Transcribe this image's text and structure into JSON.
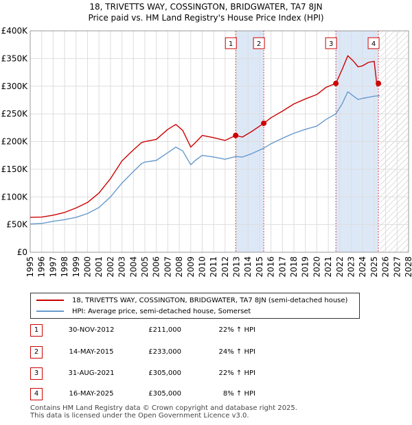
{
  "title_line1": "18, TRIVETTS WAY, COSSINGTON, BRIDGWATER, TA7 8JN",
  "title_line2": "Price paid vs. HM Land Registry's House Price Index (HPI)",
  "colors": {
    "property": "#cc0000",
    "hpi": "#6699cc",
    "shade": "#dde8f7",
    "grid": "#dddddd"
  },
  "chart_data": {
    "type": "line",
    "xlim": [
      1995,
      2028
    ],
    "ylim": [
      0,
      400000
    ],
    "x_ticks": [
      "1995",
      "1996",
      "1997",
      "1998",
      "1999",
      "2000",
      "2001",
      "2002",
      "2003",
      "2004",
      "2005",
      "2006",
      "2007",
      "2008",
      "2009",
      "2010",
      "2011",
      "2012",
      "2013",
      "2014",
      "2015",
      "2016",
      "2017",
      "2018",
      "2019",
      "2020",
      "2021",
      "2022",
      "2023",
      "2024",
      "2025",
      "2026",
      "2027",
      "2028"
    ],
    "y_ticks": [
      {
        "value": 0,
        "label": "£0"
      },
      {
        "value": 50000,
        "label": "£50K"
      },
      {
        "value": 100000,
        "label": "£100K"
      },
      {
        "value": 150000,
        "label": "£150K"
      },
      {
        "value": 200000,
        "label": "£200K"
      },
      {
        "value": 250000,
        "label": "£250K"
      },
      {
        "value": 300000,
        "label": "£300K"
      },
      {
        "value": 350000,
        "label": "£350K"
      },
      {
        "value": 400000,
        "label": "£400K"
      }
    ],
    "hatch_from": 2025.5,
    "shaded_ranges": [
      [
        2012.92,
        2015.37
      ],
      [
        2021.66,
        2025.37
      ]
    ],
    "series": [
      {
        "name": "18, TRIVETTS WAY, COSSINGTON, BRIDGWATER, TA7 8JN (semi-detached house)",
        "color": "#cc0000",
        "points": [
          [
            1995,
            63000
          ],
          [
            1996,
            63500
          ],
          [
            1997,
            67000
          ],
          [
            1998,
            72000
          ],
          [
            1999,
            80000
          ],
          [
            2000,
            90000
          ],
          [
            2001,
            107000
          ],
          [
            2002,
            133000
          ],
          [
            2003,
            165000
          ],
          [
            2004,
            185000
          ],
          [
            2004.7,
            198000
          ],
          [
            2005,
            200000
          ],
          [
            2006,
            204000
          ],
          [
            2007,
            222000
          ],
          [
            2007.7,
            231000
          ],
          [
            2008.3,
            220000
          ],
          [
            2009,
            190000
          ],
          [
            2009.4,
            198000
          ],
          [
            2010,
            211000
          ],
          [
            2011,
            207000
          ],
          [
            2012,
            202000
          ],
          [
            2012.92,
            211000
          ],
          [
            2013.5,
            208000
          ],
          [
            2014.3,
            218000
          ],
          [
            2015.37,
            233000
          ],
          [
            2016,
            243000
          ],
          [
            2017,
            255000
          ],
          [
            2018,
            268000
          ],
          [
            2019,
            277000
          ],
          [
            2020,
            285000
          ],
          [
            2020.8,
            298000
          ],
          [
            2021.66,
            305000
          ],
          [
            2022.2,
            330000
          ],
          [
            2022.7,
            355000
          ],
          [
            2023.2,
            345000
          ],
          [
            2023.6,
            335000
          ],
          [
            2024,
            337000
          ],
          [
            2024.5,
            343000
          ],
          [
            2025,
            345000
          ],
          [
            2025.25,
            300000
          ],
          [
            2025.37,
            305000
          ]
        ]
      },
      {
        "name": "HPI: Average price, semi-detached house, Somerset",
        "color": "#6699cc",
        "points": [
          [
            1995,
            51000
          ],
          [
            1996,
            52000
          ],
          [
            1997,
            56000
          ],
          [
            1998,
            59000
          ],
          [
            1999,
            63000
          ],
          [
            2000,
            70000
          ],
          [
            2001,
            81000
          ],
          [
            2002,
            100000
          ],
          [
            2003,
            125000
          ],
          [
            2004,
            146000
          ],
          [
            2004.7,
            160000
          ],
          [
            2005,
            163000
          ],
          [
            2006,
            166000
          ],
          [
            2007,
            180000
          ],
          [
            2007.7,
            190000
          ],
          [
            2008.3,
            183000
          ],
          [
            2009,
            158000
          ],
          [
            2009.4,
            166000
          ],
          [
            2010,
            175000
          ],
          [
            2011,
            172000
          ],
          [
            2012,
            168000
          ],
          [
            2012.92,
            173000
          ],
          [
            2013.5,
            172000
          ],
          [
            2014.3,
            178000
          ],
          [
            2015.37,
            188000
          ],
          [
            2016,
            196000
          ],
          [
            2017,
            206000
          ],
          [
            2018,
            215000
          ],
          [
            2019,
            222000
          ],
          [
            2020,
            228000
          ],
          [
            2020.8,
            240000
          ],
          [
            2021.66,
            250000
          ],
          [
            2022.2,
            268000
          ],
          [
            2022.7,
            290000
          ],
          [
            2023.2,
            282000
          ],
          [
            2023.6,
            276000
          ],
          [
            2024,
            278000
          ],
          [
            2024.5,
            280000
          ],
          [
            2025,
            282000
          ],
          [
            2025.5,
            283000
          ]
        ]
      }
    ],
    "sales": [
      {
        "num": "1",
        "x": 2012.92,
        "price": 211000,
        "date": "30-NOV-2012",
        "price_label": "£211,000",
        "hpi": "22% ↑ HPI"
      },
      {
        "num": "2",
        "x": 2015.37,
        "price": 233000,
        "date": "14-MAY-2015",
        "price_label": "£233,000",
        "hpi": "24% ↑ HPI"
      },
      {
        "num": "3",
        "x": 2021.66,
        "price": 305000,
        "date": "31-AUG-2021",
        "price_label": "£305,000",
        "hpi": "22% ↑ HPI"
      },
      {
        "num": "4",
        "x": 2025.37,
        "price": 305000,
        "date": "16-MAY-2025",
        "price_label": "£305,000",
        "hpi": "8% ↑ HPI"
      }
    ]
  },
  "legend": {
    "property": "18, TRIVETTS WAY, COSSINGTON, BRIDGWATER, TA7 8JN (semi-detached house)",
    "hpi": "HPI: Average price, semi-detached house, Somerset"
  },
  "footer_line1": "Contains HM Land Registry data © Crown copyright and database right 2025.",
  "footer_line2": "This data is licensed under the Open Government Licence v3.0."
}
